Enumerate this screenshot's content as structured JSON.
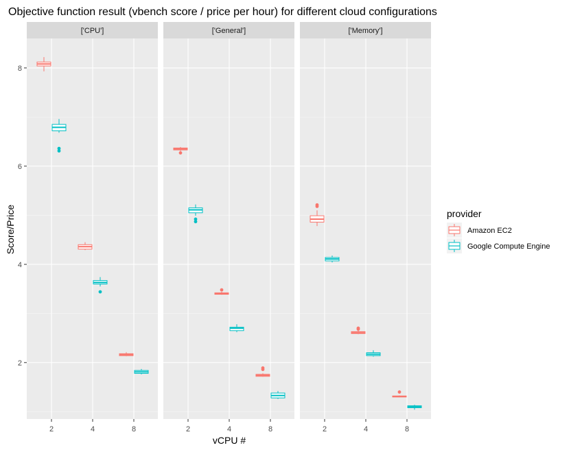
{
  "chart_data": {
    "type": "boxplot",
    "title": "Objective function result (vbench score / price per hour) for different cloud configurations",
    "xlabel": "vCPU #",
    "ylabel": "Score/Price",
    "categories": [
      "2",
      "4",
      "8"
    ],
    "ylim": [
      0.85,
      8.6
    ],
    "yticks": [
      2,
      4,
      6,
      8
    ],
    "grid": true,
    "legend": {
      "title": "provider",
      "position": "right",
      "entries": [
        "Amazon EC2",
        "Google Compute Engine"
      ]
    },
    "colors": {
      "Amazon EC2": "#F8766D",
      "Google Compute Engine": "#00BFC4"
    },
    "facets": [
      {
        "label": "['CPU']",
        "series": [
          {
            "name": "Amazon EC2",
            "boxes": [
              {
                "x": "2",
                "min": 7.93,
                "q1": 8.04,
                "median": 8.08,
                "q3": 8.12,
                "max": 8.22,
                "outliers": []
              },
              {
                "x": "4",
                "min": 4.29,
                "q1": 4.31,
                "median": 4.36,
                "q3": 4.4,
                "max": 4.45,
                "outliers": []
              },
              {
                "x": "8",
                "min": 2.13,
                "q1": 2.14,
                "median": 2.16,
                "q3": 2.18,
                "max": 2.21,
                "outliers": []
              }
            ]
          },
          {
            "name": "Google Compute Engine",
            "boxes": [
              {
                "x": "2",
                "min": 6.68,
                "q1": 6.72,
                "median": 6.79,
                "q3": 6.85,
                "max": 6.96,
                "outliers": [
                  6.31,
                  6.36
                ]
              },
              {
                "x": "4",
                "min": 3.55,
                "q1": 3.6,
                "median": 3.63,
                "q3": 3.67,
                "max": 3.74,
                "outliers": [
                  3.44
                ]
              },
              {
                "x": "8",
                "min": 1.76,
                "q1": 1.78,
                "median": 1.81,
                "q3": 1.84,
                "max": 1.87,
                "outliers": []
              }
            ]
          }
        ]
      },
      {
        "label": "['General']",
        "series": [
          {
            "name": "Amazon EC2",
            "boxes": [
              {
                "x": "2",
                "min": 6.31,
                "q1": 6.33,
                "median": 6.35,
                "q3": 6.37,
                "max": 6.39,
                "outliers": [
                  6.27
                ]
              },
              {
                "x": "4",
                "min": 3.38,
                "q1": 3.39,
                "median": 3.41,
                "q3": 3.42,
                "max": 3.44,
                "outliers": [
                  3.48
                ]
              },
              {
                "x": "8",
                "min": 1.71,
                "q1": 1.72,
                "median": 1.74,
                "q3": 1.76,
                "max": 1.78,
                "outliers": [
                  1.86,
                  1.89
                ]
              }
            ]
          },
          {
            "name": "Google Compute Engine",
            "boxes": [
              {
                "x": "2",
                "min": 4.99,
                "q1": 5.05,
                "median": 5.11,
                "q3": 5.15,
                "max": 5.22,
                "outliers": [
                  4.87,
                  4.92
                ]
              },
              {
                "x": "4",
                "min": 2.62,
                "q1": 2.65,
                "median": 2.7,
                "q3": 2.72,
                "max": 2.78,
                "outliers": []
              },
              {
                "x": "8",
                "min": 1.26,
                "q1": 1.28,
                "median": 1.33,
                "q3": 1.38,
                "max": 1.42,
                "outliers": []
              }
            ]
          }
        ]
      },
      {
        "label": "['Memory']",
        "series": [
          {
            "name": "Amazon EC2",
            "boxes": [
              {
                "x": "2",
                "min": 4.78,
                "q1": 4.86,
                "median": 4.92,
                "q3": 4.99,
                "max": 5.1,
                "outliers": [
                  5.18,
                  5.21
                ]
              },
              {
                "x": "4",
                "min": 2.58,
                "q1": 2.59,
                "median": 2.61,
                "q3": 2.63,
                "max": 2.65,
                "outliers": [
                  2.68,
                  2.7
                ]
              },
              {
                "x": "8",
                "min": 1.29,
                "q1": 1.3,
                "median": 1.31,
                "q3": 1.32,
                "max": 1.33,
                "outliers": [
                  1.4
                ]
              }
            ]
          },
          {
            "name": "Google Compute Engine",
            "boxes": [
              {
                "x": "2",
                "min": 4.04,
                "q1": 4.07,
                "median": 4.11,
                "q3": 4.14,
                "max": 4.18,
                "outliers": []
              },
              {
                "x": "4",
                "min": 2.12,
                "q1": 2.14,
                "median": 2.17,
                "q3": 2.2,
                "max": 2.25,
                "outliers": []
              },
              {
                "x": "8",
                "min": 1.04,
                "q1": 1.08,
                "median": 1.1,
                "q3": 1.12,
                "max": 1.14,
                "outliers": []
              }
            ]
          }
        ]
      }
    ]
  }
}
